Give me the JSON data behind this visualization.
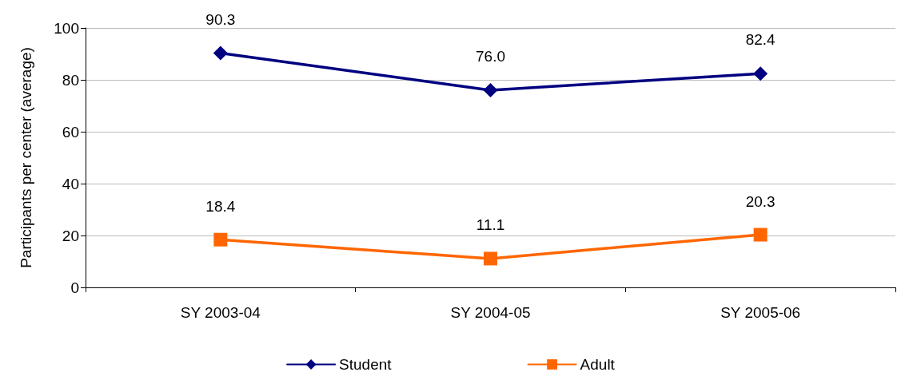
{
  "chart_data": {
    "type": "line",
    "ylabel": "Participants per center (average)",
    "categories": [
      "SY 2003-04",
      "SY 2004-05",
      "SY 2005-06"
    ],
    "series": [
      {
        "name": "Student",
        "color": "#000080",
        "values": [
          90.3,
          76.0,
          82.4
        ],
        "value_labels": [
          "90.3",
          "76.0",
          "82.4"
        ],
        "marker": "diamond"
      },
      {
        "name": "Adult",
        "color": "#ff6600",
        "values": [
          18.4,
          11.1,
          20.3
        ],
        "value_labels": [
          "18.4",
          "11.1",
          "20.3"
        ],
        "marker": "square"
      }
    ],
    "ylim": [
      0,
      100
    ],
    "yticks": [
      0,
      20,
      40,
      60,
      80,
      100
    ],
    "grid": "y",
    "legend": "bottom",
    "line_style": "solid"
  }
}
